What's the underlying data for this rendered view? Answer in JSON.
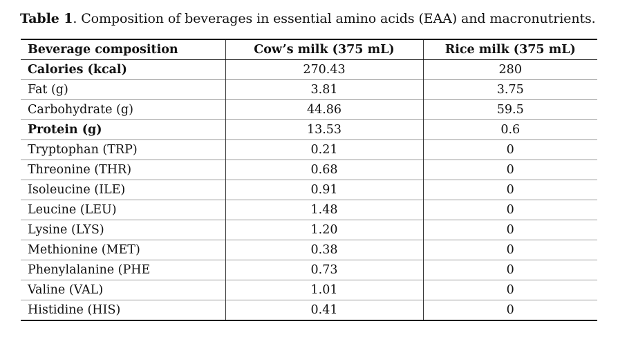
{
  "caption": {
    "label": "Table 1",
    "text": ". Composition of beverages in essential amino acids (EAA) and macronutrients."
  },
  "table": {
    "headers": [
      "Beverage composition",
      "Cow’s milk (375 mL)",
      "Rice milk (375 mL)"
    ],
    "rows": [
      {
        "label": "Calories (kcal)",
        "cow": "270.43",
        "rice": "280",
        "bold": true
      },
      {
        "label": "Fat (g)",
        "cow": "3.81",
        "rice": "3.75",
        "bold": false
      },
      {
        "label": "Carbohydrate (g)",
        "cow": "44.86",
        "rice": "59.5",
        "bold": false
      },
      {
        "label": "Protein (g)",
        "cow": "13.53",
        "rice": "0.6",
        "bold": true
      },
      {
        "label": "Tryptophan (TRP)",
        "cow": "0.21",
        "rice": "0",
        "bold": false
      },
      {
        "label": "Threonine (THR)",
        "cow": "0.68",
        "rice": "0",
        "bold": false
      },
      {
        "label": "Isoleucine (ILE)",
        "cow": "0.91",
        "rice": "0",
        "bold": false
      },
      {
        "label": "Leucine (LEU)",
        "cow": "1.48",
        "rice": "0",
        "bold": false
      },
      {
        "label": "Lysine (LYS)",
        "cow": "1.20",
        "rice": "0",
        "bold": false
      },
      {
        "label": "Methionine (MET)",
        "cow": "0.38",
        "rice": "0",
        "bold": false
      },
      {
        "label": "Phenylalanine (PHE",
        "cow": "0.73",
        "rice": "0",
        "bold": false
      },
      {
        "label": "Valine (VAL)",
        "cow": "1.01",
        "rice": "0",
        "bold": false
      },
      {
        "label": "Histidine (HIS)",
        "cow": "0.41",
        "rice": "0",
        "bold": false
      }
    ]
  }
}
